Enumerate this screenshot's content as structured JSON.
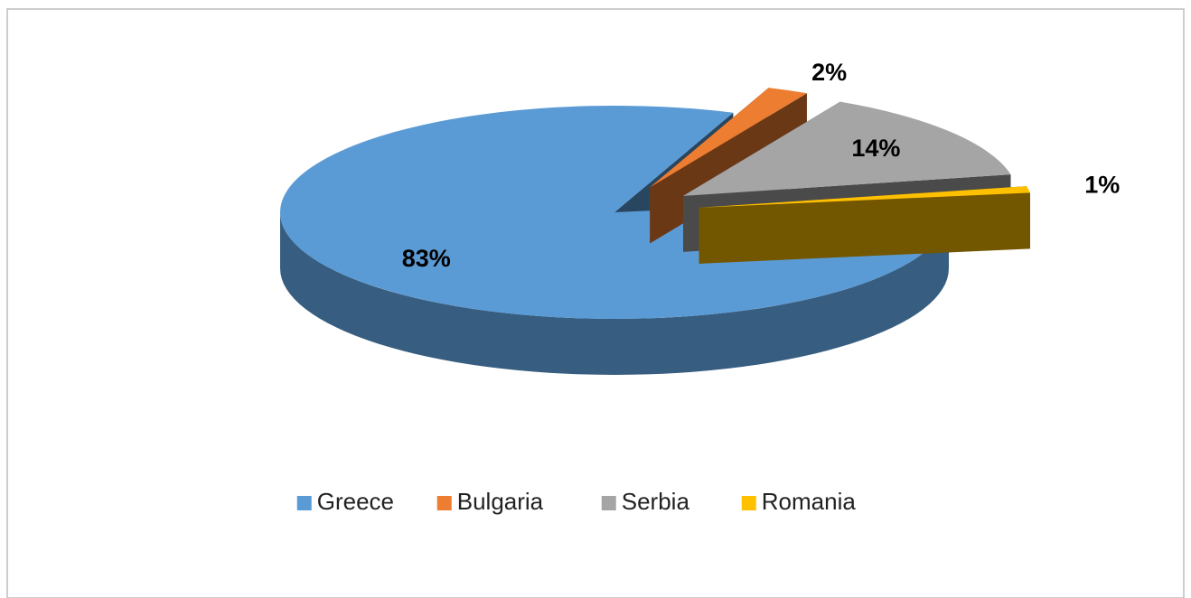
{
  "chart_data": {
    "type": "pie",
    "categories": [
      "Greece",
      "Bulgaria",
      "Serbia",
      "Romania"
    ],
    "values": [
      83,
      2,
      14,
      1
    ],
    "value_labels": [
      "83%",
      "2%",
      "14%",
      "1%"
    ],
    "colors": [
      "#5b9bd5",
      "#ed7d31",
      "#a5a5a5",
      "#ffc000"
    ],
    "legend": "bottom"
  }
}
